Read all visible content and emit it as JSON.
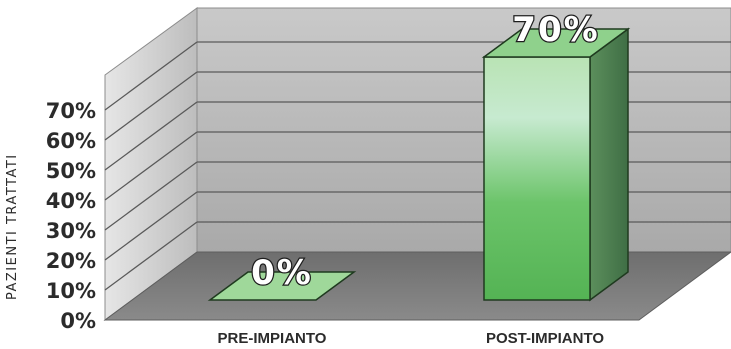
{
  "chart_data": {
    "type": "bar",
    "categories": [
      "PRE-IMPIANTO",
      "POST-IMPIANTO"
    ],
    "values": [
      0,
      70
    ],
    "data_labels": [
      "0%",
      "70%"
    ],
    "ylabel": "PAZIENTI TRATTATI",
    "ylim": [
      0,
      70
    ],
    "yticks": [
      "0%",
      "10%",
      "20%",
      "30%",
      "40%",
      "50%",
      "60%",
      "70%"
    ],
    "grid": true,
    "bar_color": "#5cbf5c",
    "wall_color": "#b8b8b8",
    "floor_color": "#7a7a7a"
  }
}
